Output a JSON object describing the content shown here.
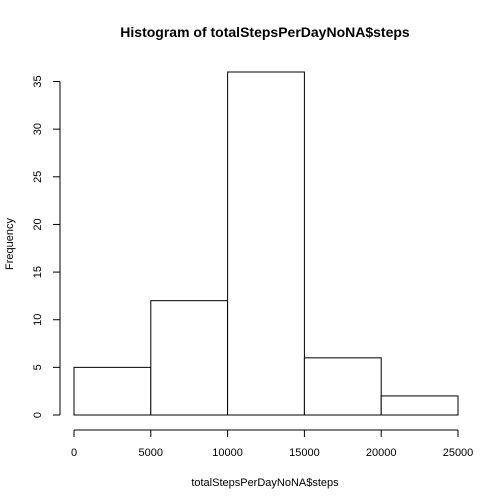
{
  "chart_data": {
    "type": "bar",
    "title": "Histogram of totalStepsPerDayNoNA$steps",
    "xlabel": "totalStepsPerDayNoNA$steps",
    "ylabel": "Frequency",
    "bins": [
      {
        "from": 0,
        "to": 5000,
        "value": 5
      },
      {
        "from": 5000,
        "to": 10000,
        "value": 12
      },
      {
        "from": 10000,
        "to": 15000,
        "value": 36
      },
      {
        "from": 15000,
        "to": 20000,
        "value": 6
      },
      {
        "from": 20000,
        "to": 25000,
        "value": 2
      }
    ],
    "xlim": [
      0,
      25000
    ],
    "ylim": [
      0,
      36
    ],
    "x_ticks": [
      {
        "value": 0,
        "label": "0"
      },
      {
        "value": 5000,
        "label": "5000"
      },
      {
        "value": 10000,
        "label": "10000"
      },
      {
        "value": 15000,
        "label": "15000"
      },
      {
        "value": 20000,
        "label": "20000"
      },
      {
        "value": 25000,
        "label": "25000"
      }
    ],
    "y_ticks": [
      {
        "value": 0,
        "label": "0"
      },
      {
        "value": 5,
        "label": "5"
      },
      {
        "value": 10,
        "label": "10"
      },
      {
        "value": 15,
        "label": "15"
      },
      {
        "value": 20,
        "label": "20"
      },
      {
        "value": 25,
        "label": "25"
      },
      {
        "value": 30,
        "label": "30"
      },
      {
        "value": 35,
        "label": "35"
      }
    ],
    "grid": false,
    "legend": "none",
    "colors": {
      "bar_fill": "#ffffff",
      "bar_stroke": "#000000"
    }
  }
}
